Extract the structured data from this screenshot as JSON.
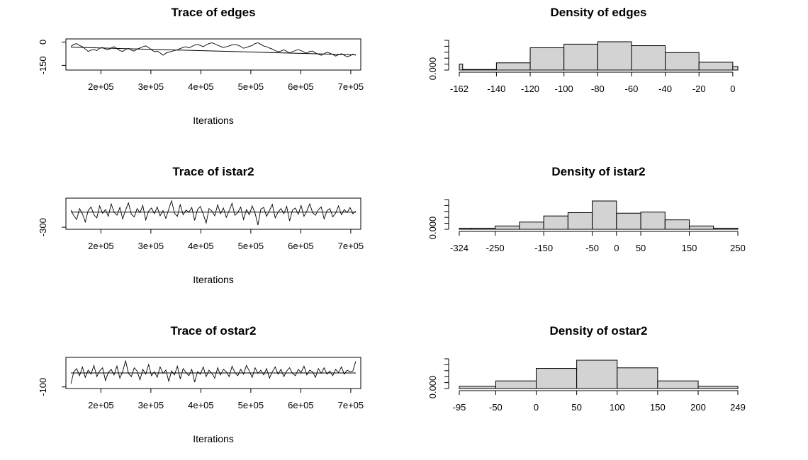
{
  "chart_data": [
    {
      "type": "line",
      "panel": "trace",
      "title": "Trace of edges",
      "xlabel": "Iterations",
      "ylabel": "",
      "x_ticks": [
        "2e+05",
        "3e+05",
        "4e+05",
        "5e+05",
        "6e+05",
        "7e+05"
      ],
      "y_ticks": [
        "0",
        "-150"
      ],
      "xlim": [
        130000,
        720000
      ],
      "ylim": [
        -180,
        20
      ],
      "x_start": 140000,
      "x_end": 710000,
      "mean_line": [
        -33,
        -82
      ],
      "series": [
        {
          "values": [
            -28,
            -15,
            -10,
            -22,
            -30,
            -45,
            -60,
            -52,
            -48,
            -55,
            -40,
            -35,
            -45,
            -50,
            -38,
            -30,
            -42,
            -55,
            -60,
            -48,
            -40,
            -52,
            -58,
            -45,
            -38,
            -30,
            -25,
            -35,
            -50,
            -62,
            -58,
            -70,
            -85,
            -72,
            -65,
            -60,
            -55,
            -50,
            -42,
            -35,
            -30,
            -38,
            -28,
            -20,
            -15,
            -22,
            -30,
            -18,
            -10,
            -5,
            -12,
            -20,
            -28,
            -35,
            -30,
            -25,
            -18,
            -15,
            -20,
            -28,
            -40,
            -35,
            -28,
            -22,
            -10,
            -5,
            -15,
            -25,
            -30,
            -38,
            -45,
            -55,
            -62,
            -58,
            -50,
            -60,
            -70,
            -62,
            -55,
            -48,
            -55,
            -65,
            -72,
            -60,
            -58,
            -70,
            -78,
            -85,
            -75,
            -65,
            -72,
            -80,
            -90,
            -82,
            -75,
            -85,
            -95,
            -88,
            -78,
            -85
          ]
        }
      ]
    },
    {
      "type": "bar",
      "panel": "density",
      "title": "Density of edges",
      "xlabel": "",
      "ylabel": "",
      "x_ticks": [
        -162,
        -140,
        -120,
        -100,
        -80,
        -60,
        -40,
        -20,
        0
      ],
      "y_tick_label": "0.000",
      "xlim": [
        -162,
        3
      ],
      "bins": [
        {
          "from": -162,
          "to": -160,
          "density": 0.002
        },
        {
          "from": -160,
          "to": -140,
          "density": 0.0002
        },
        {
          "from": -140,
          "to": -120,
          "density": 0.0024
        },
        {
          "from": -120,
          "to": -100,
          "density": 0.0074
        },
        {
          "from": -100,
          "to": -80,
          "density": 0.0086
        },
        {
          "from": -80,
          "to": -60,
          "density": 0.0094
        },
        {
          "from": -60,
          "to": -40,
          "density": 0.0081
        },
        {
          "from": -40,
          "to": -20,
          "density": 0.0058
        },
        {
          "from": -20,
          "to": 0,
          "density": 0.0026
        },
        {
          "from": 0,
          "to": 3,
          "density": 0.0012
        }
      ]
    },
    {
      "type": "line",
      "panel": "trace",
      "title": "Trace of istar2",
      "xlabel": "Iterations",
      "ylabel": "",
      "x_ticks": [
        "2e+05",
        "3e+05",
        "4e+05",
        "5e+05",
        "6e+05",
        "7e+05"
      ],
      "y_ticks": [
        "-300"
      ],
      "xlim": [
        130000,
        720000
      ],
      "ylim": [
        -340,
        260
      ],
      "x_start": 140000,
      "x_end": 710000,
      "mean_line": [
        -10,
        -10
      ],
      "series": [
        {
          "values": [
            30,
            -80,
            -150,
            60,
            -40,
            -200,
            20,
            90,
            -60,
            -120,
            110,
            -30,
            40,
            -90,
            150,
            -10,
            -70,
            80,
            -140,
            30,
            170,
            -50,
            -100,
            60,
            -20,
            120,
            -160,
            10,
            70,
            -40,
            90,
            -80,
            20,
            -130,
            50,
            210,
            -30,
            -90,
            140,
            -60,
            30,
            -10,
            80,
            -170,
            40,
            100,
            -50,
            -220,
            60,
            10,
            -80,
            130,
            -40,
            70,
            -110,
            20,
            160,
            -70,
            -20,
            90,
            -150,
            40,
            -60,
            110,
            -30,
            -260,
            50,
            80,
            -90,
            20,
            140,
            -120,
            -10,
            60,
            -40,
            100,
            -180,
            30,
            70,
            -50,
            120,
            -90,
            10,
            150,
            -20,
            -70,
            40,
            90,
            -140,
            20,
            60,
            -100,
            -30,
            110,
            -60,
            40,
            -20,
            80,
            -40,
            10
          ]
        }
      ]
    },
    {
      "type": "bar",
      "panel": "density",
      "title": "Density of istar2",
      "xlabel": "",
      "ylabel": "",
      "x_ticks": [
        -324,
        -250,
        -150,
        -50,
        0,
        50,
        150,
        250
      ],
      "y_tick_label": "0.000",
      "xlim": [
        -324,
        250
      ],
      "bins": [
        {
          "from": -324,
          "to": -300,
          "density": 0.0002
        },
        {
          "from": -300,
          "to": -250,
          "density": 0.0002
        },
        {
          "from": -250,
          "to": -200,
          "density": 0.0006
        },
        {
          "from": -200,
          "to": -150,
          "density": 0.0013
        },
        {
          "from": -150,
          "to": -100,
          "density": 0.0024
        },
        {
          "from": -100,
          "to": -50,
          "density": 0.003
        },
        {
          "from": -50,
          "to": 0,
          "density": 0.0051
        },
        {
          "from": 0,
          "to": 50,
          "density": 0.0029
        },
        {
          "from": 50,
          "to": 100,
          "density": 0.0031
        },
        {
          "from": 100,
          "to": 150,
          "density": 0.0017
        },
        {
          "from": 150,
          "to": 200,
          "density": 0.0006
        },
        {
          "from": 200,
          "to": 250,
          "density": 0.0002
        }
      ]
    },
    {
      "type": "line",
      "panel": "trace",
      "title": "Trace of ostar2",
      "xlabel": "Iterations",
      "ylabel": "",
      "x_ticks": [
        "2e+05",
        "3e+05",
        "4e+05",
        "5e+05",
        "6e+05",
        "7e+05"
      ],
      "y_ticks": [
        "-100"
      ],
      "xlim": [
        130000,
        720000
      ],
      "ylim": [
        -120,
        270
      ],
      "x_start": 140000,
      "x_end": 710000,
      "mean_line": [
        75,
        75
      ],
      "series": [
        {
          "values": [
            -60,
            90,
            130,
            40,
            150,
            20,
            110,
            60,
            170,
            30,
            100,
            140,
            -20,
            80,
            120,
            50,
            160,
            10,
            90,
            230,
            70,
            30,
            140,
            100,
            -10,
            120,
            60,
            180,
            40,
            90,
            20,
            150,
            70,
            110,
            -30,
            100,
            50,
            160,
            0,
            130,
            80,
            40,
            120,
            -40,
            90,
            60,
            150,
            30,
            110,
            70,
            10,
            140,
            50,
            120,
            90,
            30,
            160,
            80,
            40,
            120,
            60,
            170,
            100,
            20,
            140,
            70,
            110,
            50,
            130,
            10,
            90,
            150,
            60,
            120,
            30,
            100,
            140,
            70,
            40,
            120,
            80,
            160,
            50,
            110,
            90,
            20,
            130,
            70,
            140,
            60,
            100,
            40,
            120,
            80,
            150,
            60,
            110,
            90,
            100,
            220
          ]
        }
      ]
    },
    {
      "type": "bar",
      "panel": "density",
      "title": "Density of ostar2",
      "xlabel": "",
      "ylabel": "",
      "x_ticks": [
        -95,
        -50,
        0,
        50,
        100,
        150,
        200,
        249
      ],
      "y_tick_label": "0.000",
      "xlim": [
        -95,
        249
      ],
      "bins": [
        {
          "from": -95,
          "to": -50,
          "density": 0.0004
        },
        {
          "from": -50,
          "to": 0,
          "density": 0.0014
        },
        {
          "from": 0,
          "to": 50,
          "density": 0.0037
        },
        {
          "from": 50,
          "to": 100,
          "density": 0.0052
        },
        {
          "from": 100,
          "to": 150,
          "density": 0.0038
        },
        {
          "from": 150,
          "to": 200,
          "density": 0.0014
        },
        {
          "from": 200,
          "to": 249,
          "density": 0.0004
        }
      ]
    }
  ]
}
